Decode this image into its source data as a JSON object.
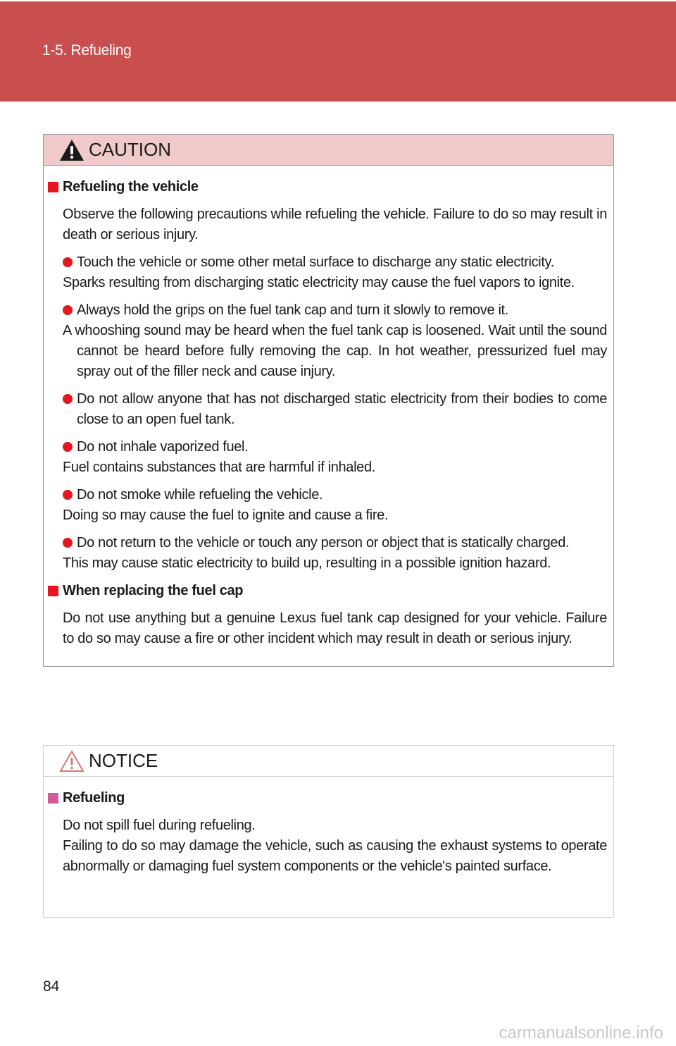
{
  "header": {
    "section": "1-5. Refueling",
    "color": "#c94f4f"
  },
  "caution": {
    "title": "CAUTION",
    "icon": "warning-triangle-icon",
    "sections": [
      {
        "heading": "Refueling the vehicle",
        "intro": "Observe the following precautions while refueling the vehicle. Failure to do so may result in death or serious injury.",
        "bullets": [
          [
            "Touch the vehicle or some other metal surface to discharge any static electricity.",
            "Sparks resulting from discharging static electricity may cause the fuel vapors to ignite."
          ],
          [
            "Always hold the grips on the fuel tank cap and turn it slowly to remove it.",
            "A whooshing sound may be heard when the fuel tank cap is loosened. Wait until the sound cannot be heard before fully removing the cap. In hot weather, pressurized fuel may spray out of the filler neck and cause injury."
          ],
          [
            "Do not allow anyone that has not discharged static electricity from their bodies to come close to an open fuel tank."
          ],
          [
            "Do not inhale vaporized fuel.",
            "Fuel contains substances that are harmful if inhaled."
          ],
          [
            "Do not smoke while refueling the vehicle.",
            "Doing so may cause the fuel to ignite and cause a fire."
          ],
          [
            "Do not return to the vehicle or touch any person or object that is statically charged.",
            "This may cause static electricity to build up, resulting in a possible ignition hazard."
          ]
        ]
      },
      {
        "heading": "When replacing the fuel cap",
        "intro": "Do not use anything but a genuine Lexus fuel tank cap designed for your vehicle. Failure to do so may cause a fire or other incident which may result in death or serious injury."
      }
    ]
  },
  "notice": {
    "title": "NOTICE",
    "icon": "warning-outline-icon",
    "heading": "Refueling",
    "lines": [
      "Do not spill fuel during refueling.",
      "Failing to do so may damage the vehicle, such as causing the exhaust systems to operate abnormally or damaging fuel system components or the vehicle's painted surface."
    ]
  },
  "page_number": "84",
  "watermark": "carmanualsonline.info"
}
